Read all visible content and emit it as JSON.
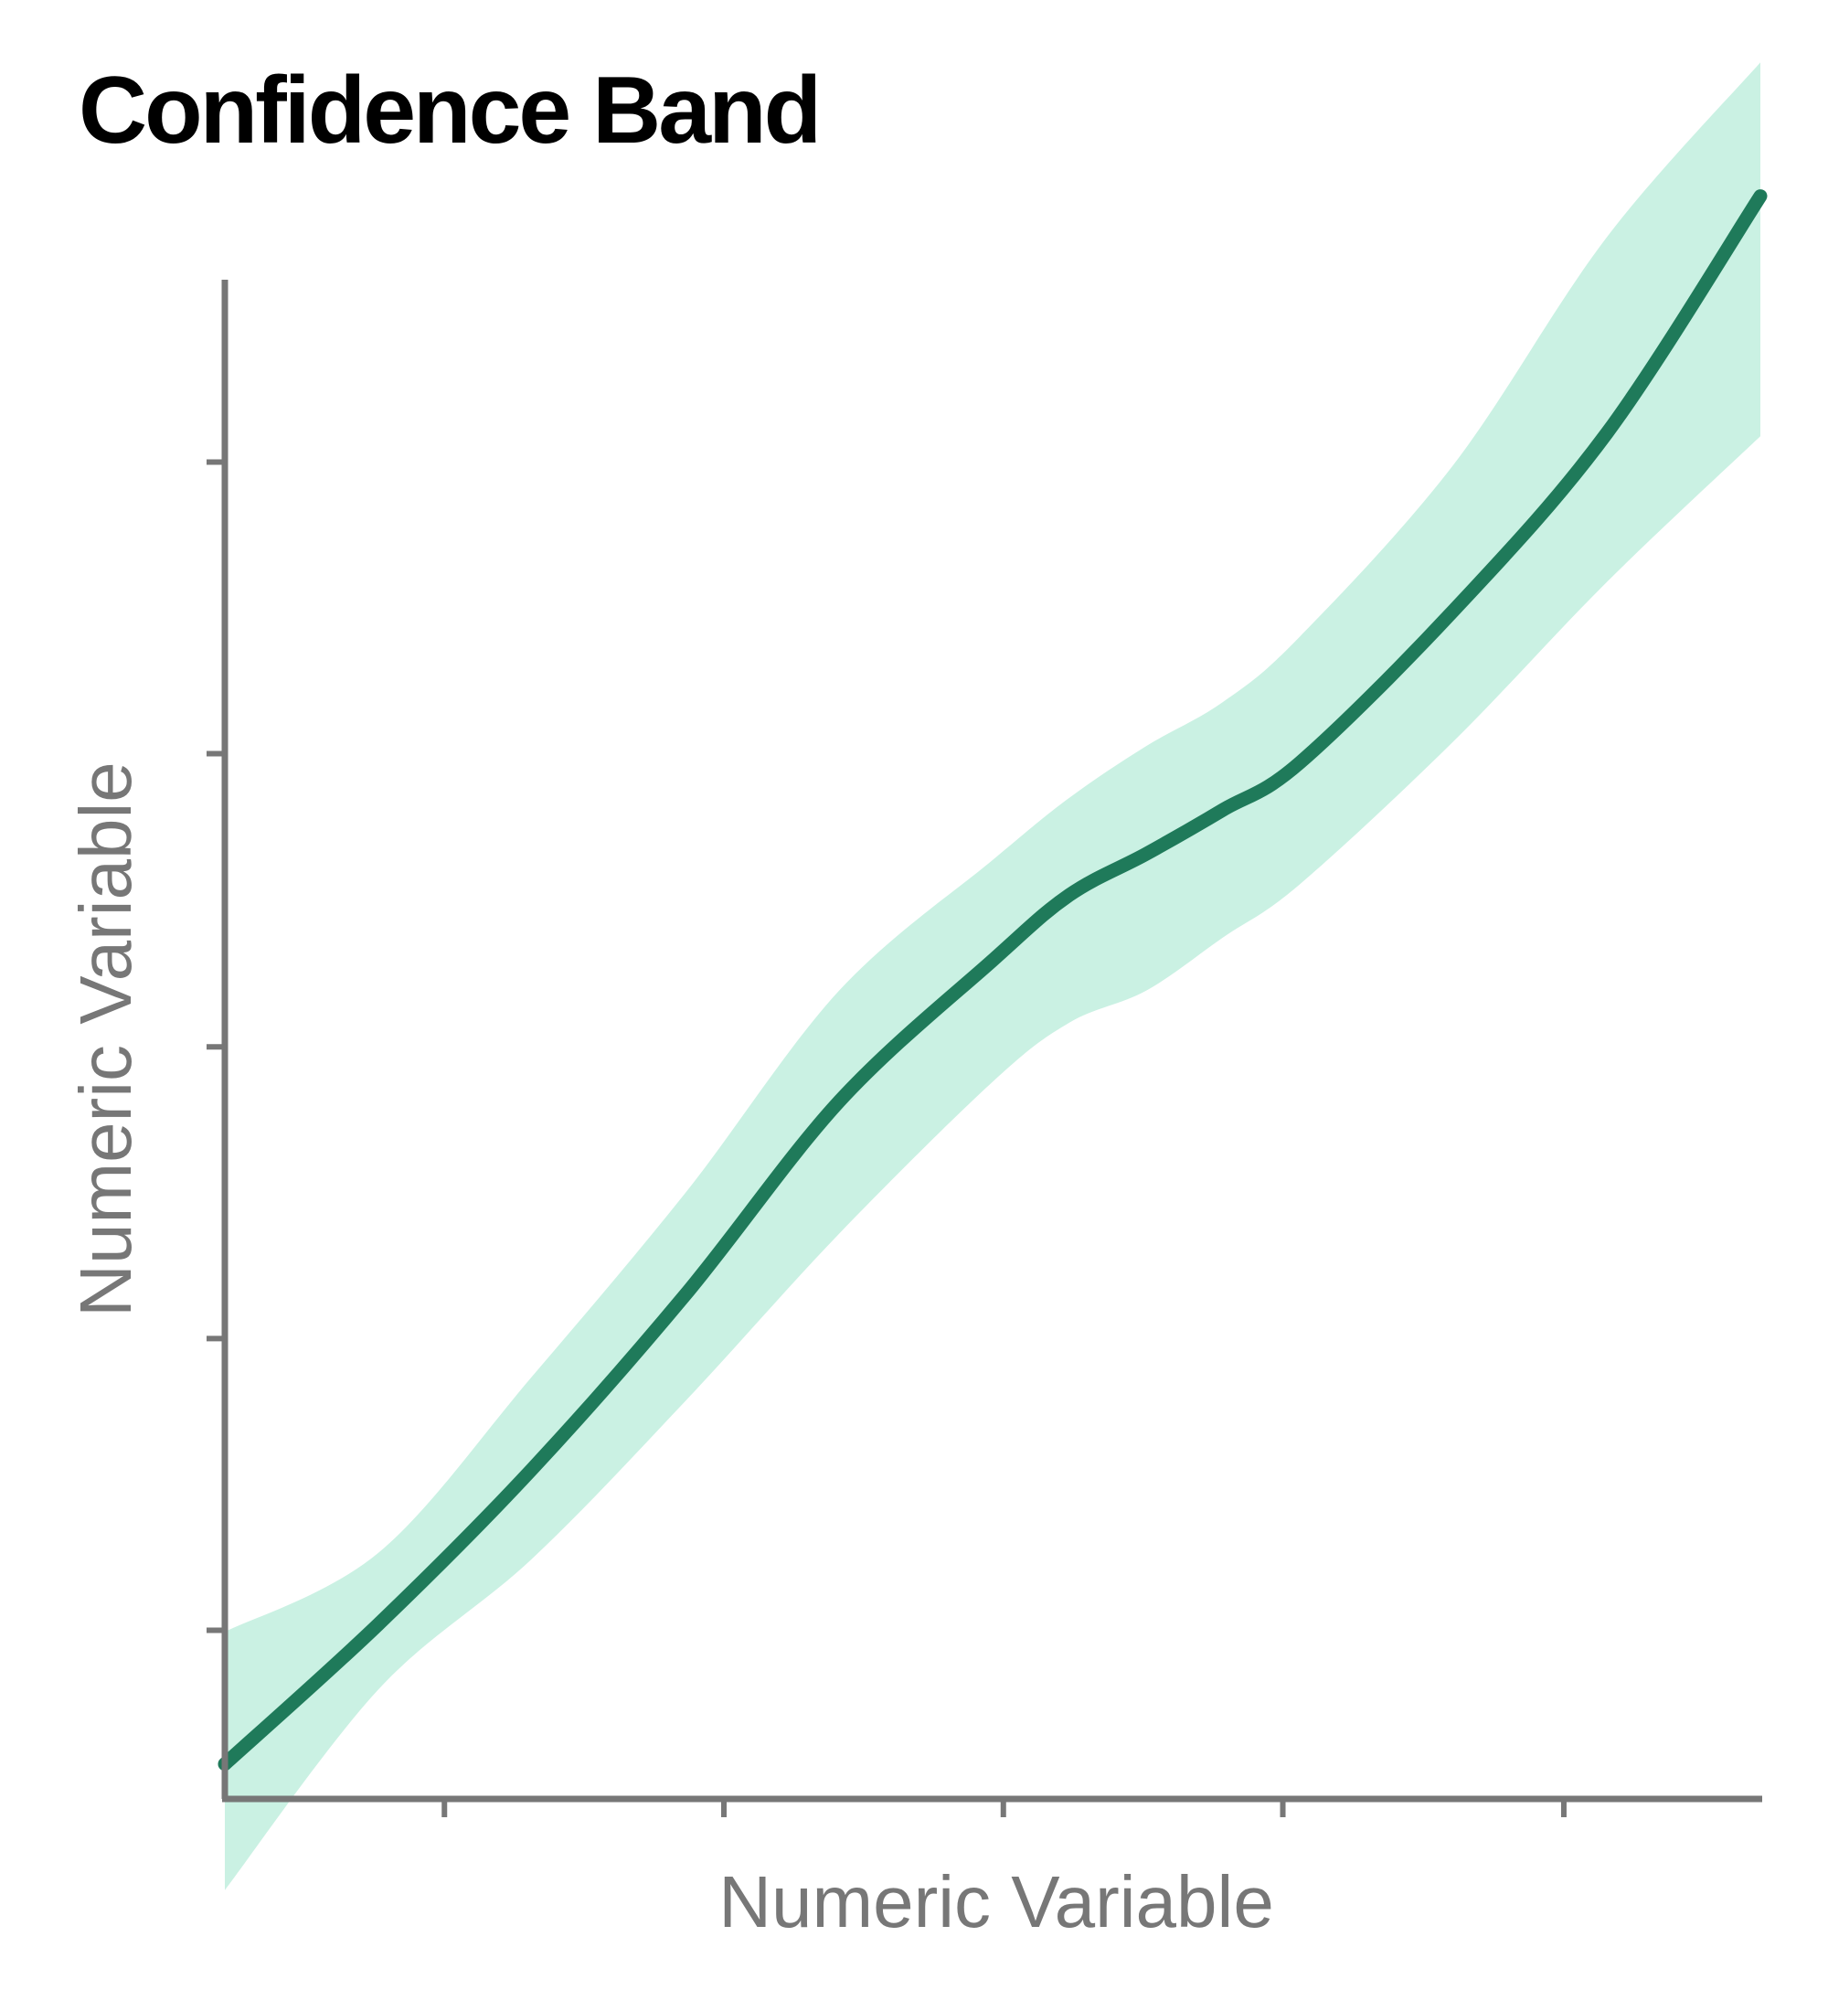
{
  "chart_data": {
    "type": "line",
    "title": "Confidence Band",
    "xlabel": "Numeric Variable",
    "ylabel": "Numeric Variable",
    "xlim": [
      0,
      1
    ],
    "ylim": [
      0,
      1
    ],
    "x_ticks": [
      0.143,
      0.325,
      0.507,
      0.689,
      0.872
    ],
    "y_ticks": [
      0.111,
      0.303,
      0.495,
      0.688,
      0.88
    ],
    "tick_labels_shown": false,
    "grid": false,
    "legend": "none",
    "colors": {
      "line": "#1f7a5a",
      "band": "#caf1e3",
      "axis": "#777777"
    },
    "series": [
      {
        "x": [
          0.0,
          0.1,
          0.2,
          0.3,
          0.4,
          0.5,
          0.55,
          0.6,
          0.65,
          0.7,
          0.8,
          0.9,
          1.0
        ],
        "y": [
          0.023,
          0.115,
          0.217,
          0.332,
          0.459,
          0.552,
          0.595,
          0.622,
          0.651,
          0.682,
          0.782,
          0.899,
          1.055
        ],
        "lower": [
          -0.06,
          0.072,
          0.158,
          0.262,
          0.372,
          0.472,
          0.511,
          0.532,
          0.567,
          0.602,
          0.696,
          0.801,
          0.897
        ],
        "upper": [
          0.11,
          0.162,
          0.278,
          0.399,
          0.532,
          0.618,
          0.659,
          0.693,
          0.722,
          0.765,
          0.878,
          1.028,
          1.143
        ]
      }
    ]
  }
}
